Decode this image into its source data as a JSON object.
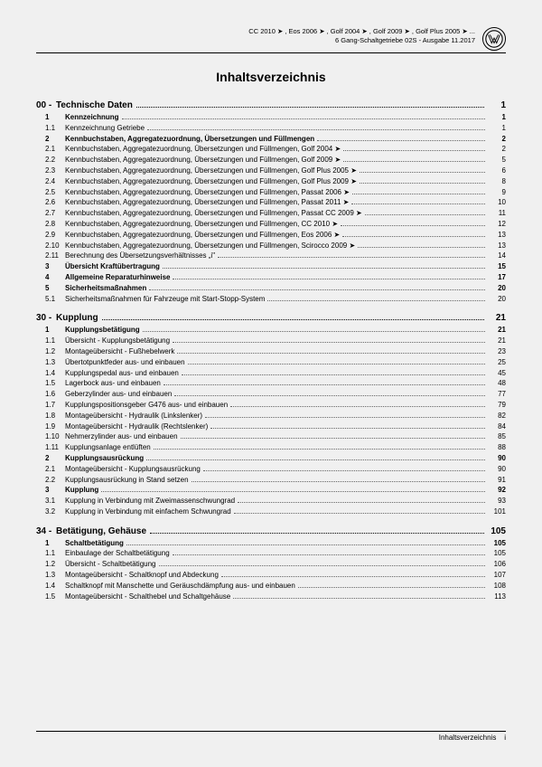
{
  "header": {
    "line1": "CC 2010 ➤ , Eos 2006 ➤ , Golf 2004 ➤ , Golf 2009 ➤ , Golf Plus 2005 ➤ ...",
    "line2": "6 Gang-Schaltgetriebe 02S - Ausgabe 11.2017"
  },
  "title": "Inhaltsverzeichnis",
  "sections": [
    {
      "num": "00 -",
      "title": "Technische Daten",
      "page": "1",
      "rows": [
        {
          "n": "1",
          "t": "Kennzeichnung",
          "p": "1",
          "b": true
        },
        {
          "n": "1.1",
          "t": "Kennzeichnung Getriebe",
          "p": "1"
        },
        {
          "n": "2",
          "t": "Kennbuchstaben, Aggregatezuordnung, Übersetzungen und Füllmengen",
          "p": "2",
          "b": true
        },
        {
          "n": "2.1",
          "t": "Kennbuchstaben, Aggregatezuordnung, Übersetzungen und Füllmengen, Golf 2004 ➤",
          "p": "2"
        },
        {
          "n": "2.2",
          "t": "Kennbuchstaben, Aggregatezuordnung, Übersetzungen und Füllmengen, Golf 2009 ➤",
          "p": "5"
        },
        {
          "n": "2.3",
          "t": "Kennbuchstaben, Aggregatezuordnung, Übersetzungen und Füllmengen, Golf Plus 2005 ➤",
          "p": "6"
        },
        {
          "n": "2.4",
          "t": "Kennbuchstaben, Aggregatezuordnung, Übersetzungen und Füllmengen, Golf Plus 2009 ➤",
          "p": "8"
        },
        {
          "n": "2.5",
          "t": "Kennbuchstaben, Aggregatezuordnung, Übersetzungen und Füllmengen, Passat 2006 ➤",
          "p": "9"
        },
        {
          "n": "2.6",
          "t": "Kennbuchstaben, Aggregatezuordnung, Übersetzungen und Füllmengen, Passat 2011 ➤",
          "p": "10"
        },
        {
          "n": "2.7",
          "t": "Kennbuchstaben, Aggregatezuordnung, Übersetzungen und Füllmengen, Passat CC 2009 ➤",
          "p": "11"
        },
        {
          "n": "2.8",
          "t": "Kennbuchstaben, Aggregatezuordnung, Übersetzungen und Füllmengen, CC 2010 ➤",
          "p": "12"
        },
        {
          "n": "2.9",
          "t": "Kennbuchstaben, Aggregatezuordnung, Übersetzungen und Füllmengen, Eos 2006 ➤",
          "p": "13"
        },
        {
          "n": "2.10",
          "t": "Kennbuchstaben, Aggregatezuordnung, Übersetzungen und Füllmengen, Scirocco 2009 ➤",
          "p": "13"
        },
        {
          "n": "2.11",
          "t": "Berechnung des Übersetzungsverhältnisses „i\"",
          "p": "14"
        },
        {
          "n": "3",
          "t": "Übersicht Kraftübertragung",
          "p": "15",
          "b": true
        },
        {
          "n": "4",
          "t": "Allgemeine Reparaturhinweise",
          "p": "17",
          "b": true
        },
        {
          "n": "5",
          "t": "Sicherheitsmaßnahmen",
          "p": "20",
          "b": true
        },
        {
          "n": "5.1",
          "t": "Sicherheitsmaßnahmen für Fahrzeuge mit Start-Stopp-System",
          "p": "20"
        }
      ]
    },
    {
      "num": "30 -",
      "title": "Kupplung",
      "page": "21",
      "rows": [
        {
          "n": "1",
          "t": "Kupplungsbetätigung",
          "p": "21",
          "b": true
        },
        {
          "n": "1.1",
          "t": "Übersicht - Kupplungsbetätigung",
          "p": "21"
        },
        {
          "n": "1.2",
          "t": "Montageübersicht - Fußhebelwerk",
          "p": "23"
        },
        {
          "n": "1.3",
          "t": "Übertotpunktfeder aus- und einbauen",
          "p": "25"
        },
        {
          "n": "1.4",
          "t": "Kupplungspedal aus- und einbauen",
          "p": "45"
        },
        {
          "n": "1.5",
          "t": "Lagerbock aus- und einbauen",
          "p": "48"
        },
        {
          "n": "1.6",
          "t": "Geberzylinder aus- und einbauen",
          "p": "77"
        },
        {
          "n": "1.7",
          "t": "Kupplungspositionsgeber G476 aus- und einbauen",
          "p": "79"
        },
        {
          "n": "1.8",
          "t": "Montageübersicht - Hydraulik (Linkslenker)",
          "p": "82"
        },
        {
          "n": "1.9",
          "t": "Montageübersicht - Hydraulik (Rechtslenker)",
          "p": "84"
        },
        {
          "n": "1.10",
          "t": "Nehmerzylinder aus- und einbauen",
          "p": "85"
        },
        {
          "n": "1.11",
          "t": "Kupplungsanlage entlüften",
          "p": "88"
        },
        {
          "n": "2",
          "t": "Kupplungsausrückung",
          "p": "90",
          "b": true
        },
        {
          "n": "2.1",
          "t": "Montageübersicht - Kupplungsausrückung",
          "p": "90"
        },
        {
          "n": "2.2",
          "t": "Kupplungsausrückung in Stand setzen",
          "p": "91"
        },
        {
          "n": "3",
          "t": "Kupplung",
          "p": "92",
          "b": true
        },
        {
          "n": "3.1",
          "t": "Kupplung in Verbindung mit Zweimassenschwungrad",
          "p": "93"
        },
        {
          "n": "3.2",
          "t": "Kupplung in Verbindung mit einfachem Schwungrad",
          "p": "101"
        }
      ]
    },
    {
      "num": "34 -",
      "title": "Betätigung, Gehäuse",
      "page": "105",
      "rows": [
        {
          "n": "1",
          "t": "Schaltbetätigung",
          "p": "105",
          "b": true
        },
        {
          "n": "1.1",
          "t": "Einbaulage der Schaltbetätigung",
          "p": "105"
        },
        {
          "n": "1.2",
          "t": "Übersicht - Schaltbetätigung",
          "p": "106"
        },
        {
          "n": "1.3",
          "t": "Montageübersicht - Schaltknopf und Abdeckung",
          "p": "107"
        },
        {
          "n": "1.4",
          "t": "Schaltknopf mit Manschette und Geräuschdämpfung aus- und einbauen",
          "p": "108"
        },
        {
          "n": "1.5",
          "t": "Montageübersicht - Schalthebel und Schaltgehäuse",
          "p": "113"
        }
      ]
    }
  ],
  "footer": {
    "label": "Inhaltsverzeichnis",
    "page": "i"
  }
}
